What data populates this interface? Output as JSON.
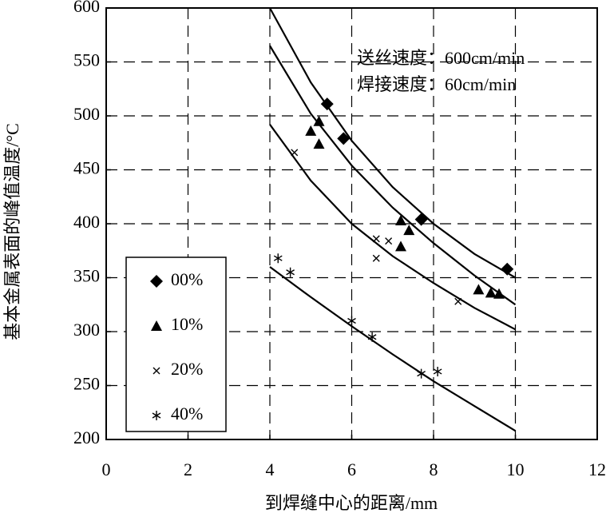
{
  "chart_data": {
    "type": "scatter",
    "xlabel": "到焊缝中心的距离/mm",
    "ylabel": "基本金属表面的峰值温度/°C",
    "annotations": [
      "送丝速度：600cm/min",
      "焊接速度：60cm/min"
    ],
    "xlim": [
      0,
      12
    ],
    "xticks": [
      0,
      2,
      4,
      6,
      8,
      10,
      12
    ],
    "ylim": [
      200,
      600
    ],
    "yticks": [
      200,
      250,
      300,
      350,
      400,
      450,
      500,
      550,
      600
    ],
    "grid": true,
    "legend": "lower left",
    "series": [
      {
        "name": "00%",
        "marker": "diamond",
        "color": "#000000",
        "x": [
          5.4,
          5.8,
          7.7,
          9.8
        ],
        "y": [
          511,
          479,
          404,
          358
        ]
      },
      {
        "name": "10%",
        "marker": "triangle",
        "color": "#000000",
        "x": [
          5.0,
          5.2,
          5.2,
          7.2,
          7.4,
          7.2,
          9.1,
          9.4,
          9.6
        ],
        "y": [
          486,
          495,
          474,
          403,
          394,
          379,
          339,
          336,
          335
        ]
      },
      {
        "name": "20%",
        "marker": "x",
        "color": "#000000",
        "x": [
          4.6,
          6.6,
          6.9,
          6.6,
          8.6
        ],
        "y": [
          466,
          386,
          384,
          368,
          328
        ]
      },
      {
        "name": "40%",
        "marker": "asterisk",
        "color": "#000000",
        "x": [
          4.2,
          4.5,
          6.0,
          6.5,
          7.7,
          8.1
        ],
        "y": [
          368,
          355,
          310,
          295,
          261,
          263
        ]
      }
    ],
    "curves": [
      {
        "x": [
          4,
          5,
          6,
          7,
          8,
          9,
          10
        ],
        "y": [
          600,
          531,
          477,
          434,
          400,
          372,
          350
        ]
      },
      {
        "x": [
          4,
          5,
          6,
          7,
          8,
          9,
          10
        ],
        "y": [
          565,
          502,
          454,
          415,
          382,
          352,
          325
        ]
      },
      {
        "x": [
          4,
          5,
          6,
          7,
          8,
          9,
          10
        ],
        "y": [
          492,
          440,
          400,
          370,
          345,
          322,
          302
        ]
      },
      {
        "x": [
          4,
          5,
          6,
          7,
          8,
          9,
          10
        ],
        "y": [
          360,
          332,
          305,
          279,
          254,
          231,
          208
        ]
      }
    ]
  }
}
